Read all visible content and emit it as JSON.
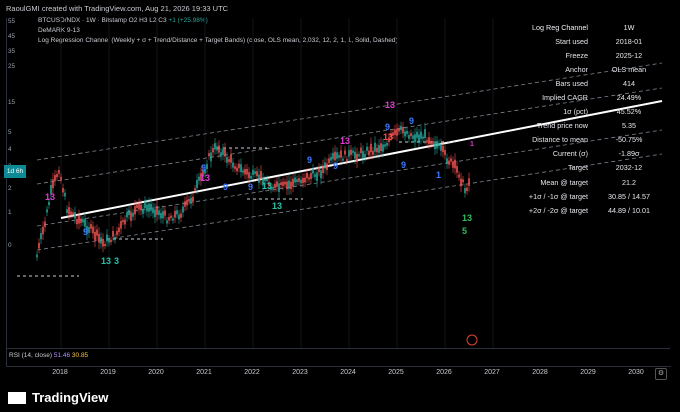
{
  "header": {
    "creator_line": "RaoulGMI created with TradingView.com, Aug 21, 2026 19:33 UTC"
  },
  "legend": {
    "symbol": "BTCUSD/NDX · 1W · Bitstamp",
    "ohlc": "O2  H3  L2  C3",
    "change": "+1 (+25.98%)",
    "indicator1": "DeMARK 9-13",
    "indicator2": "Log Regression Channel (Weekly + σ + Trend/Distance + Target Bands) (close, OLS mean, 2,032, 12, 2, 1, 1, Solid, Dashed)"
  },
  "stats_table": {
    "title_key": "Log Reg Channel",
    "title_value": "1W",
    "rows": [
      {
        "k": "Start used",
        "v": "2018-01"
      },
      {
        "k": "Freeze",
        "v": "2025-12"
      },
      {
        "k": "Anchor",
        "v": "OLS mean"
      },
      {
        "k": "Bars used",
        "v": "414"
      },
      {
        "k": "Implied CAGR",
        "v": "24.49%"
      },
      {
        "k": "1σ (pct)",
        "v": "45.52%"
      },
      {
        "k": "Trend price now",
        "v": "5.35"
      },
      {
        "k": "Distance to mean",
        "v": "-50.75%"
      },
      {
        "k": "Current (σ)",
        "v": "-1.89σ"
      },
      {
        "k": "Target",
        "v": "2032-12"
      },
      {
        "k": "Mean @ target",
        "v": "21.2"
      },
      {
        "k": "+1σ / -1σ @ target",
        "v": "30.85 / 14.57"
      },
      {
        "k": "+2σ / -2σ @ target",
        "v": "44.89 / 10.01"
      }
    ]
  },
  "y_axis": {
    "ticks": [
      "55",
      "45",
      "35",
      "25",
      "15",
      "5",
      "4",
      "3",
      "2",
      "1",
      "0"
    ],
    "current_label": "1d 6h"
  },
  "x_axis": {
    "years": [
      "2018",
      "2019",
      "2020",
      "2021",
      "2022",
      "2023",
      "2024",
      "2025",
      "2026",
      "2027",
      "2028",
      "2029",
      "2030"
    ]
  },
  "rsi": {
    "label": "RSI (14, close)",
    "value1": "51.46",
    "value2": "30.85"
  },
  "demark_labels": [
    "13",
    "9",
    "13",
    "9",
    "13",
    "9",
    "9",
    "13",
    "9",
    "13",
    "9",
    "13",
    "9",
    "9",
    "13",
    "9",
    "1",
    "5",
    "13",
    "3",
    "13",
    "1"
  ],
  "colors": {
    "background": "#000000",
    "trend": "#ffffff",
    "candle_up": "#26a69a",
    "candle_down": "#ef5350",
    "band": "#9aa0aa"
  },
  "footer": {
    "brand": "TradingView"
  }
}
